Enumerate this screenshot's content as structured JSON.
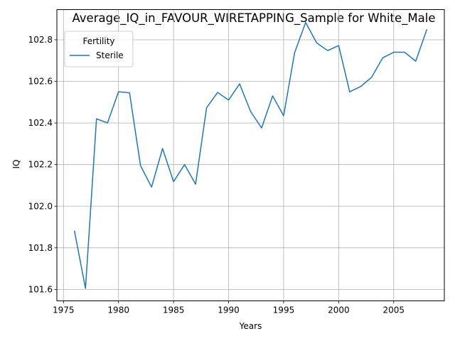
{
  "chart_data": {
    "type": "line",
    "title": "Average_IQ_in_FAVOUR_WIRETAPPING_Sample for White_Male",
    "xlabel": "Years",
    "ylabel": "IQ",
    "xlim": [
      1974.4,
      2009.6
    ],
    "ylim": [
      101.545,
      102.945
    ],
    "xticks": [
      1975,
      1980,
      1985,
      1990,
      1995,
      2000,
      2005
    ],
    "yticks": [
      101.6,
      101.8,
      102.0,
      102.2,
      102.4,
      102.6,
      102.8
    ],
    "ytick_labels": [
      "101.6",
      "101.8",
      "102.0",
      "102.2",
      "102.4",
      "102.6",
      "102.8"
    ],
    "grid": true,
    "legend": {
      "title": "Fertility",
      "placement": "top-left"
    },
    "series": [
      {
        "name": "Sterile",
        "color": "#1f77b4",
        "x": [
          1976,
          1977,
          1978,
          1979,
          1980,
          1981,
          1982,
          1983,
          1984,
          1985,
          1986,
          1987,
          1988,
          1989,
          1990,
          1991,
          1992,
          1993,
          1994,
          1995,
          1996,
          1997,
          1998,
          1999,
          2000,
          2001,
          2002,
          2003,
          2004,
          2005,
          2006,
          2007,
          2008
        ],
        "y": [
          101.88,
          101.605,
          102.42,
          102.4,
          102.55,
          102.545,
          102.195,
          102.092,
          102.277,
          102.118,
          102.2,
          102.106,
          102.473,
          102.547,
          102.51,
          102.588,
          102.455,
          102.376,
          102.53,
          102.435,
          102.738,
          102.883,
          102.785,
          102.748,
          102.772,
          102.55,
          102.575,
          102.62,
          102.713,
          102.74,
          102.74,
          102.697,
          102.848
        ]
      }
    ]
  }
}
